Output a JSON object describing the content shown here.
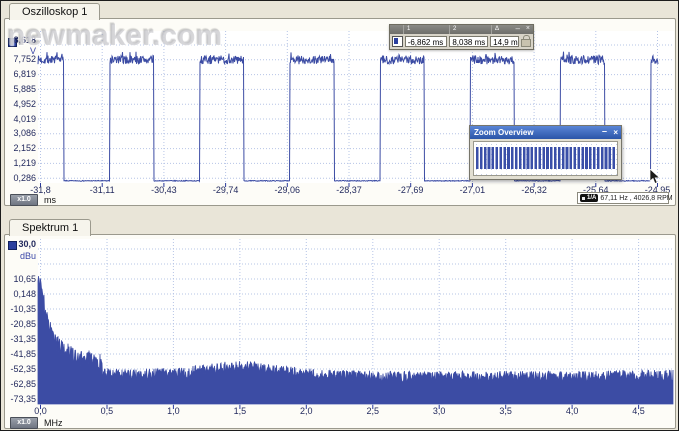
{
  "watermark_text": "newmaker.com",
  "oscilloscope": {
    "tab_label": "Oszilloskop 1",
    "y_axis": {
      "max_label": "8,618",
      "unit": "V",
      "ticks": [
        "7,752",
        "6,819",
        "5,885",
        "4,952",
        "4,019",
        "3,086",
        "2,152",
        "1,219",
        "0,286"
      ]
    },
    "x_axis": {
      "ticks": [
        "-31,8",
        "-31,11",
        "-30,43",
        "-29,74",
        "-29,06",
        "-28,37",
        "-27,69",
        "-27,01",
        "-26,32",
        "-25,64",
        "-24,95"
      ],
      "scale_button": "x1.0",
      "unit": "ms"
    },
    "status": {
      "channel_badge": "1/A",
      "readout": "67,11 Hz , 4026,8 RPM"
    },
    "cursor_toolbar": {
      "headers": [
        "1",
        "2",
        "Δ"
      ],
      "values": [
        "-6,862 ms",
        "8,038 ms",
        "14,9 ms"
      ],
      "minimize_label": "–",
      "close_label": "×"
    },
    "zoom_overview": {
      "title": "Zoom Overview",
      "minimize_label": "–",
      "close_label": "×"
    }
  },
  "spectrum": {
    "tab_label": "Spektrum 1",
    "y_axis": {
      "max_label": "30,0",
      "unit": "dBu",
      "ticks": [
        "10,65",
        "0,148",
        "-10,35",
        "-20,85",
        "-31,35",
        "-41,85",
        "-52,35",
        "-62,85",
        "-73,35"
      ]
    },
    "x_axis": {
      "ticks": [
        "0,0",
        "0,5",
        "1,0",
        "1,5",
        "2,0",
        "2,5",
        "3,0",
        "3,5",
        "4,0",
        "4,5"
      ],
      "scale_button": "x1.0",
      "unit": "MHz"
    }
  },
  "chart_data": [
    {
      "type": "line",
      "title": "Oszilloskop 1",
      "xlabel": "ms",
      "ylabel": "V",
      "x_range": [
        -31.8,
        -24.95
      ],
      "x_tick_values": [
        -31.8,
        -31.11,
        -30.43,
        -29.74,
        -29.06,
        -28.37,
        -27.69,
        -27.01,
        -26.32,
        -25.64,
        -24.95
      ],
      "y_tick_values": [
        7.752,
        6.819,
        5.885,
        4.952,
        4.019,
        3.086,
        2.152,
        1.219,
        0.286
      ],
      "y_max": 8.618,
      "grid": "on",
      "signal": {
        "kind": "square_pulse_train_with_noisy_high_level",
        "high_level_v": 7.75,
        "low_level_v": 0.12,
        "high_noise_pp_v": 0.55,
        "period_ms": 1.001,
        "high_fraction": 0.49,
        "first_fall_ms": -31.544
      },
      "cursor_readouts": {
        "cursor1_ms": -6.862,
        "cursor2_ms": 8.038,
        "delta_ms": 14.9
      },
      "trigger_readout": {
        "channel": "1/A",
        "frequency_hz": 67.11,
        "rpm": 4026.8
      },
      "overview_pulse_count": 40
    },
    {
      "type": "area",
      "title": "Spektrum 1",
      "xlabel": "MHz",
      "ylabel": "dBu",
      "x_range": [
        0,
        4.77
      ],
      "x_tick_values": [
        0,
        0.5,
        1,
        1.5,
        2,
        2.5,
        3,
        3.5,
        4,
        4.5
      ],
      "y_tick_values": [
        10.65,
        0.148,
        -10.35,
        -20.85,
        -31.35,
        -41.85,
        -52.35,
        -62.85,
        -73.35
      ],
      "y_max": 30.0,
      "grid": "on",
      "envelope_points": [
        [
          0,
          15
        ],
        [
          0.005,
          12
        ],
        [
          0.02,
          0
        ],
        [
          0.04,
          -12
        ],
        [
          0.07,
          -22
        ],
        [
          0.11,
          -30
        ],
        [
          0.16,
          -35
        ],
        [
          0.22,
          -39
        ],
        [
          0.3,
          -42
        ],
        [
          0.4,
          -43
        ],
        [
          0.45,
          -44
        ],
        [
          0.47,
          -54
        ],
        [
          0.7,
          -55
        ],
        [
          1.1,
          -53
        ],
        [
          1.35,
          -50
        ],
        [
          1.55,
          -48.5
        ],
        [
          1.8,
          -52
        ],
        [
          2.1,
          -55
        ],
        [
          2.6,
          -56
        ],
        [
          3.2,
          -56
        ],
        [
          4.0,
          -56
        ],
        [
          4.77,
          -55
        ]
      ],
      "noise_band_db": {
        "low_freq": 13,
        "high_freq": 8
      },
      "low_freq_limit_mhz": 0.46,
      "floor_db": -73.35
    }
  ]
}
